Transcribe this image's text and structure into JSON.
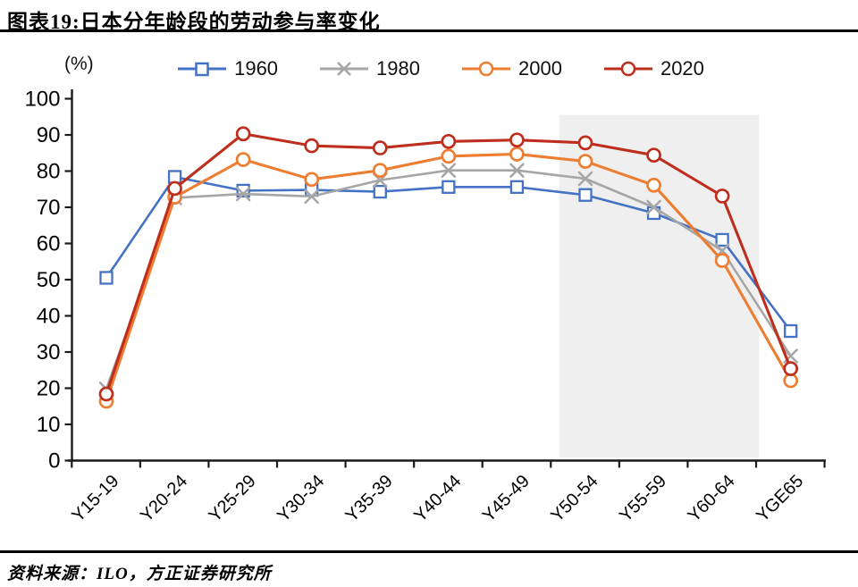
{
  "header": {
    "title": "图表19:日本分年龄段的劳动参与率变化"
  },
  "y_axis_unit_label": "(%)",
  "footer": {
    "source": "资料来源：ILO，方正证券研究所"
  },
  "chart_data": {
    "type": "line",
    "title": "日本分年龄段的劳动参与率变化",
    "categories": [
      "Y15-19",
      "Y20-24",
      "Y25-29",
      "Y30-34",
      "Y35-39",
      "Y40-44",
      "Y45-49",
      "Y50-54",
      "Y55-59",
      "Y60-64",
      "YGE65"
    ],
    "series": [
      {
        "name": "1960",
        "marker": "square",
        "color": "#4472C4",
        "values": [
          50.5,
          78.4,
          74.6,
          74.8,
          74.3,
          75.6,
          75.6,
          73.4,
          68.4,
          61.0,
          35.8
        ]
      },
      {
        "name": "1980",
        "marker": "x",
        "color": "#A6A6A6",
        "values": [
          19.8,
          72.6,
          73.7,
          73.0,
          77.5,
          80.2,
          80.2,
          77.9,
          70.0,
          58.0,
          28.9
        ]
      },
      {
        "name": "2000",
        "marker": "circle",
        "color": "#ED7D31",
        "values": [
          16.4,
          72.8,
          83.2,
          77.7,
          80.2,
          84.1,
          84.7,
          82.7,
          76.1,
          55.3,
          22.1
        ]
      },
      {
        "name": "2020",
        "marker": "circle",
        "color": "#BE2E1D",
        "values": [
          18.4,
          75.2,
          90.3,
          87.0,
          86.4,
          88.2,
          88.6,
          87.8,
          84.4,
          73.1,
          25.4
        ]
      }
    ],
    "ylabel": "(%)",
    "ylim": [
      0,
      100
    ],
    "y_ticks": [
      0,
      10,
      20,
      30,
      40,
      50,
      60,
      70,
      80,
      90,
      100
    ],
    "grid": false,
    "legend_position": "top",
    "highlight_band": {
      "from_category": "Y50-54",
      "to_category": "Y60-64",
      "color": "#EFEFEF",
      "top_value": 95.5
    }
  }
}
